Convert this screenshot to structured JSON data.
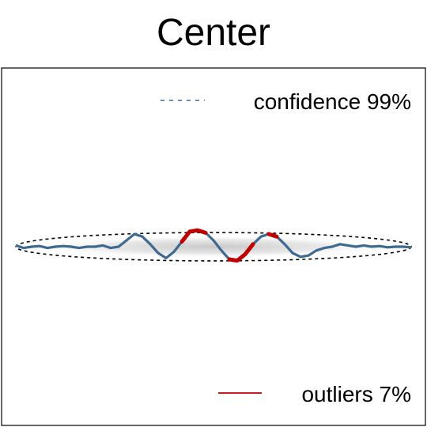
{
  "chart_data": {
    "type": "line",
    "title": "Center",
    "xlabel": "",
    "ylabel": "",
    "axes_visible": false,
    "grid": false,
    "legend_placement": "right",
    "xlim": [
      0,
      1
    ],
    "ylim": [
      -1,
      1
    ],
    "confidence_region": {
      "shape": "ellipse",
      "center": [
        0.5,
        0
      ],
      "half_width": 0.5,
      "half_height": 0.07,
      "style": "dashed",
      "color": "#000000"
    },
    "legend": [
      {
        "label": "confidence 99%",
        "color": "#3e6a91",
        "style": "dashed"
      },
      {
        "label": "outliers 7%",
        "color": "#c00000",
        "style": "solid"
      }
    ],
    "series": [
      {
        "name": "confidence 99%",
        "color": "#3e6a91",
        "x": [
          0,
          0.02,
          0.04,
          0.06,
          0.08,
          0.1,
          0.12,
          0.14,
          0.16,
          0.18,
          0.2,
          0.22,
          0.24,
          0.26,
          0.28,
          0.3,
          0.32,
          0.34,
          0.36,
          0.38,
          0.4,
          0.42,
          0.44,
          0.46,
          0.48,
          0.5,
          0.52,
          0.54,
          0.56,
          0.58,
          0.6,
          0.62,
          0.64,
          0.66,
          0.68,
          0.7,
          0.72,
          0.74,
          0.76,
          0.78,
          0.8,
          0.82,
          0.84,
          0.86,
          0.88,
          0.9,
          0.92,
          0.94,
          0.96,
          0.98,
          1.0
        ],
        "y": [
          0.01,
          -0.01,
          0.0,
          0.005,
          -0.01,
          0.0,
          0.005,
          0.0,
          -0.01,
          0.0,
          0.0,
          0.01,
          -0.01,
          0.0,
          0.05,
          0.1,
          0.08,
          0.02,
          -0.05,
          -0.09,
          -0.04,
          0.04,
          0.12,
          0.13,
          0.11,
          0.05,
          -0.03,
          -0.1,
          -0.11,
          -0.06,
          0.02,
          0.08,
          0.1,
          0.08,
          0.02,
          -0.05,
          -0.08,
          -0.07,
          -0.03,
          -0.01,
          0.0,
          0.02,
          0.01,
          0.0,
          0.01,
          0.0,
          0.005,
          -0.005,
          0.0,
          0.0,
          -0.005
        ]
      }
    ],
    "outliers": {
      "name": "outliers 7%",
      "color": "#c00000",
      "ranges": [
        [
          0.42,
          0.48
        ],
        [
          0.54,
          0.6
        ],
        [
          0.64,
          0.66
        ]
      ]
    }
  }
}
